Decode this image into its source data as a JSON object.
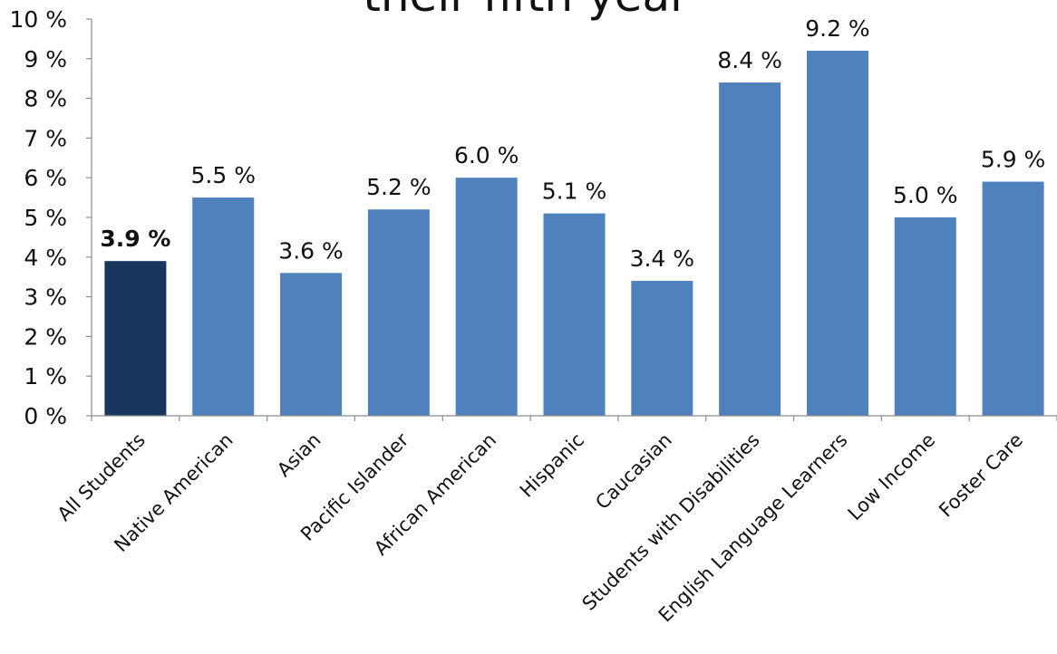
{
  "chart_data": {
    "type": "bar",
    "title": "their fifth year",
    "xlabel": "",
    "ylabel": "",
    "ylim": [
      0,
      10
    ],
    "yticks": [
      "0 %",
      "1 %",
      "2 %",
      "3 %",
      "4 %",
      "5 %",
      "6 %",
      "7 %",
      "8 %",
      "9 %",
      "10 %"
    ],
    "grid": false,
    "categories": [
      "All Students",
      "Native American",
      "Asian",
      "Pacific Islander",
      "African American",
      "Hispanic",
      "Caucasian",
      "Students with Disabilities",
      "English Language Learners",
      "Low Income",
      "Foster Care"
    ],
    "values": [
      3.9,
      5.5,
      3.6,
      5.2,
      6.0,
      5.1,
      3.4,
      8.4,
      9.2,
      5.0,
      5.9
    ],
    "data_labels": [
      "3.9 %",
      "5.5 %",
      "3.6 %",
      "5.2 %",
      "6.0 %",
      "5.1 %",
      "3.4 %",
      "8.4 %",
      "9.2 %",
      "5.0 %",
      "5.9 %"
    ],
    "colors": {
      "highlight": "#1b365d",
      "bar": "#4f81bd",
      "axis": "#8c8c8c"
    },
    "highlight_index": 0
  }
}
